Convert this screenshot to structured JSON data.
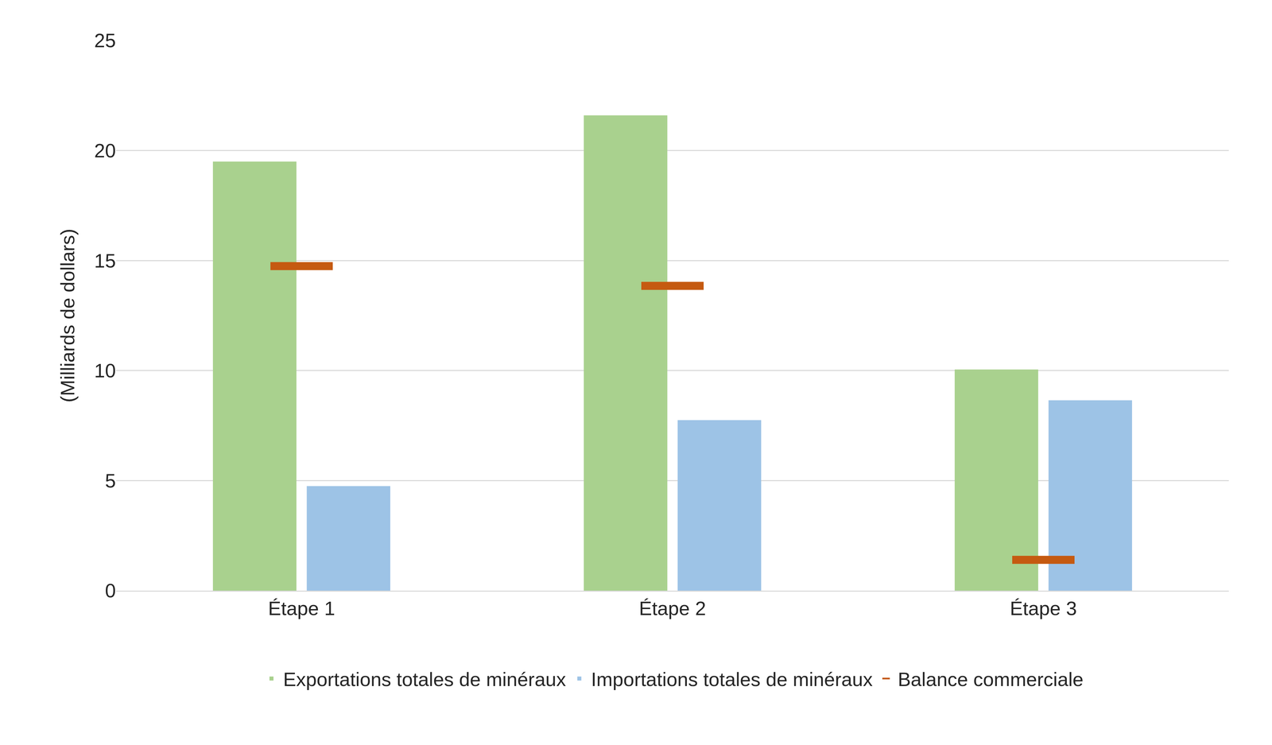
{
  "chart_data": {
    "type": "bar",
    "y_label": "(Milliards de dollars)",
    "categories": [
      "Étape 1",
      "Étape 2",
      "Étape 3"
    ],
    "series": [
      {
        "name": "Exportations totales de minéraux",
        "type": "bar",
        "color": "#a9d18e",
        "values": [
          19.5,
          21.6,
          10.05
        ]
      },
      {
        "name": "Importations totales de minéraux",
        "type": "bar",
        "color": "#9dc3e6",
        "values": [
          4.75,
          7.75,
          8.65
        ]
      },
      {
        "name": "Balance commerciale",
        "type": "scatter",
        "marker": "dash",
        "color": "#c55a11",
        "values": [
          14.75,
          13.85,
          1.4
        ]
      }
    ],
    "ylim": [
      0,
      25
    ],
    "yticks": [
      0,
      5,
      10,
      15,
      20,
      25
    ],
    "grid": true,
    "legend": "bottom"
  }
}
